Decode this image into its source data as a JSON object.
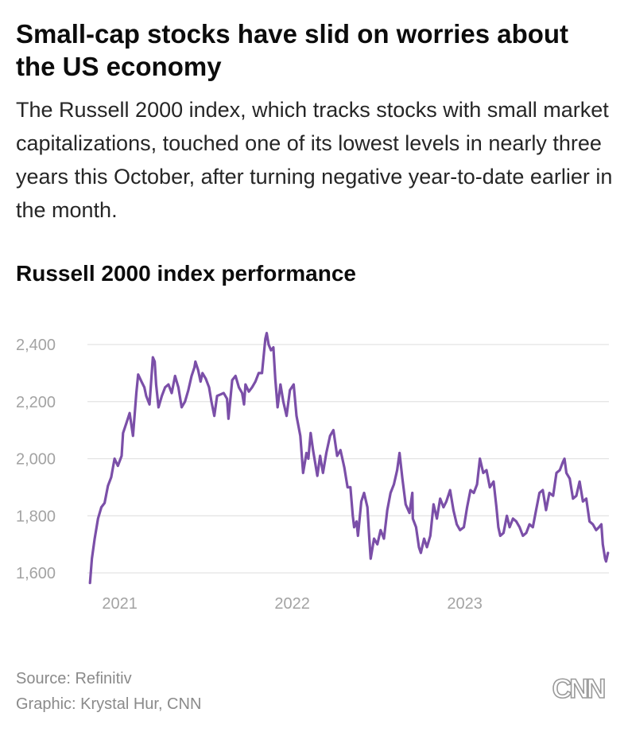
{
  "header": {
    "title": "Small-cap stocks have slid on worries about the US economy",
    "subtitle": "The Russell 2000 index, which tracks stocks with small market capitalizations, touched one of its lowest levels in nearly three years this October, after turning negative year-to-date earlier in the month."
  },
  "chart_data": {
    "type": "line",
    "title": "Russell 2000 index performance",
    "xlabel": "",
    "ylabel": "",
    "ylim": [
      1600,
      2450
    ],
    "xlim": [
      "2020-10-28",
      "2023-11-02"
    ],
    "yticks": [
      1600,
      1800,
      2000,
      2200,
      2400
    ],
    "ytick_labels": [
      "1,600",
      "1,800",
      "2,000",
      "2,200",
      "2,400"
    ],
    "xticks": [
      "2021",
      "2022",
      "2023"
    ],
    "xtick_dates": [
      "2021-01-01",
      "2022-01-01",
      "2023-01-01"
    ],
    "grid": true,
    "line_color": "#7b4fa8",
    "series": [
      {
        "name": "",
        "points": [
          [
            "2020-10-30",
            1565
          ],
          [
            "2020-11-03",
            1650
          ],
          [
            "2020-11-09",
            1720
          ],
          [
            "2020-11-16",
            1790
          ],
          [
            "2020-11-23",
            1830
          ],
          [
            "2020-11-30",
            1845
          ],
          [
            "2020-12-07",
            1905
          ],
          [
            "2020-12-14",
            1935
          ],
          [
            "2020-12-21",
            2000
          ],
          [
            "2020-12-28",
            1975
          ],
          [
            "2021-01-05",
            2010
          ],
          [
            "2021-01-08",
            2090
          ],
          [
            "2021-01-15",
            2125
          ],
          [
            "2021-01-22",
            2160
          ],
          [
            "2021-01-29",
            2080
          ],
          [
            "2021-02-05",
            2230
          ],
          [
            "2021-02-09",
            2295
          ],
          [
            "2021-02-16",
            2270
          ],
          [
            "2021-02-22",
            2250
          ],
          [
            "2021-02-26",
            2220
          ],
          [
            "2021-03-05",
            2190
          ],
          [
            "2021-03-12",
            2355
          ],
          [
            "2021-03-16",
            2340
          ],
          [
            "2021-03-19",
            2260
          ],
          [
            "2021-03-24",
            2180
          ],
          [
            "2021-03-31",
            2220
          ],
          [
            "2021-04-07",
            2250
          ],
          [
            "2021-04-14",
            2260
          ],
          [
            "2021-04-21",
            2230
          ],
          [
            "2021-04-28",
            2290
          ],
          [
            "2021-05-05",
            2250
          ],
          [
            "2021-05-12",
            2180
          ],
          [
            "2021-05-19",
            2200
          ],
          [
            "2021-05-26",
            2240
          ],
          [
            "2021-06-02",
            2290
          ],
          [
            "2021-06-08",
            2320
          ],
          [
            "2021-06-10",
            2340
          ],
          [
            "2021-06-16",
            2310
          ],
          [
            "2021-06-21",
            2270
          ],
          [
            "2021-06-25",
            2300
          ],
          [
            "2021-07-02",
            2280
          ],
          [
            "2021-07-09",
            2250
          ],
          [
            "2021-07-14",
            2200
          ],
          [
            "2021-07-20",
            2150
          ],
          [
            "2021-07-26",
            2220
          ],
          [
            "2021-08-02",
            2225
          ],
          [
            "2021-08-09",
            2230
          ],
          [
            "2021-08-16",
            2210
          ],
          [
            "2021-08-19",
            2140
          ],
          [
            "2021-08-27",
            2275
          ],
          [
            "2021-09-03",
            2290
          ],
          [
            "2021-09-10",
            2250
          ],
          [
            "2021-09-17",
            2230
          ],
          [
            "2021-09-21",
            2190
          ],
          [
            "2021-09-24",
            2260
          ],
          [
            "2021-10-01",
            2235
          ],
          [
            "2021-10-08",
            2250
          ],
          [
            "2021-10-15",
            2270
          ],
          [
            "2021-10-22",
            2300
          ],
          [
            "2021-10-29",
            2300
          ],
          [
            "2021-11-05",
            2420
          ],
          [
            "2021-11-08",
            2440
          ],
          [
            "2021-11-12",
            2400
          ],
          [
            "2021-11-17",
            2380
          ],
          [
            "2021-11-22",
            2390
          ],
          [
            "2021-11-26",
            2280
          ],
          [
            "2021-12-01",
            2180
          ],
          [
            "2021-12-07",
            2260
          ],
          [
            "2021-12-13",
            2200
          ],
          [
            "2021-12-20",
            2150
          ],
          [
            "2021-12-27",
            2240
          ],
          [
            "2022-01-04",
            2260
          ],
          [
            "2022-01-10",
            2150
          ],
          [
            "2022-01-18",
            2080
          ],
          [
            "2022-01-24",
            1950
          ],
          [
            "2022-01-31",
            2020
          ],
          [
            "2022-02-04",
            2000
          ],
          [
            "2022-02-09",
            2090
          ],
          [
            "2022-02-14",
            2030
          ],
          [
            "2022-02-23",
            1940
          ],
          [
            "2022-03-01",
            2010
          ],
          [
            "2022-03-07",
            1950
          ],
          [
            "2022-03-14",
            2020
          ],
          [
            "2022-03-22",
            2080
          ],
          [
            "2022-03-29",
            2100
          ],
          [
            "2022-04-06",
            2010
          ],
          [
            "2022-04-13",
            2030
          ],
          [
            "2022-04-21",
            1970
          ],
          [
            "2022-04-28",
            1900
          ],
          [
            "2022-05-04",
            1900
          ],
          [
            "2022-05-09",
            1800
          ],
          [
            "2022-05-12",
            1760
          ],
          [
            "2022-05-17",
            1780
          ],
          [
            "2022-05-20",
            1730
          ],
          [
            "2022-05-27",
            1850
          ],
          [
            "2022-06-02",
            1880
          ],
          [
            "2022-06-09",
            1830
          ],
          [
            "2022-06-13",
            1720
          ],
          [
            "2022-06-16",
            1650
          ],
          [
            "2022-06-23",
            1720
          ],
          [
            "2022-06-30",
            1700
          ],
          [
            "2022-07-07",
            1750
          ],
          [
            "2022-07-14",
            1720
          ],
          [
            "2022-07-21",
            1820
          ],
          [
            "2022-07-28",
            1880
          ],
          [
            "2022-08-04",
            1910
          ],
          [
            "2022-08-11",
            1960
          ],
          [
            "2022-08-16",
            2020
          ],
          [
            "2022-08-22",
            1930
          ],
          [
            "2022-08-29",
            1840
          ],
          [
            "2022-09-06",
            1810
          ],
          [
            "2022-09-12",
            1880
          ],
          [
            "2022-09-13",
            1790
          ],
          [
            "2022-09-20",
            1760
          ],
          [
            "2022-09-26",
            1690
          ],
          [
            "2022-09-30",
            1670
          ],
          [
            "2022-10-07",
            1720
          ],
          [
            "2022-10-13",
            1690
          ],
          [
            "2022-10-20",
            1730
          ],
          [
            "2022-10-27",
            1840
          ],
          [
            "2022-11-03",
            1790
          ],
          [
            "2022-11-10",
            1860
          ],
          [
            "2022-11-17",
            1830
          ],
          [
            "2022-11-23",
            1850
          ],
          [
            "2022-12-01",
            1890
          ],
          [
            "2022-12-08",
            1820
          ],
          [
            "2022-12-15",
            1770
          ],
          [
            "2022-12-22",
            1750
          ],
          [
            "2022-12-30",
            1760
          ],
          [
            "2023-01-06",
            1830
          ],
          [
            "2023-01-13",
            1890
          ],
          [
            "2023-01-20",
            1880
          ],
          [
            "2023-01-27",
            1910
          ],
          [
            "2023-02-02",
            2000
          ],
          [
            "2023-02-09",
            1950
          ],
          [
            "2023-02-16",
            1960
          ],
          [
            "2023-02-23",
            1900
          ],
          [
            "2023-03-03",
            1920
          ],
          [
            "2023-03-09",
            1830
          ],
          [
            "2023-03-13",
            1760
          ],
          [
            "2023-03-17",
            1730
          ],
          [
            "2023-03-24",
            1740
          ],
          [
            "2023-03-31",
            1800
          ],
          [
            "2023-04-06",
            1760
          ],
          [
            "2023-04-13",
            1790
          ],
          [
            "2023-04-20",
            1780
          ],
          [
            "2023-04-27",
            1760
          ],
          [
            "2023-05-04",
            1730
          ],
          [
            "2023-05-11",
            1740
          ],
          [
            "2023-05-18",
            1770
          ],
          [
            "2023-05-25",
            1760
          ],
          [
            "2023-06-01",
            1820
          ],
          [
            "2023-06-08",
            1880
          ],
          [
            "2023-06-15",
            1890
          ],
          [
            "2023-06-22",
            1820
          ],
          [
            "2023-06-29",
            1880
          ],
          [
            "2023-07-07",
            1870
          ],
          [
            "2023-07-14",
            1950
          ],
          [
            "2023-07-21",
            1960
          ],
          [
            "2023-07-28",
            1990
          ],
          [
            "2023-07-31",
            2000
          ],
          [
            "2023-08-04",
            1950
          ],
          [
            "2023-08-11",
            1930
          ],
          [
            "2023-08-18",
            1860
          ],
          [
            "2023-08-25",
            1870
          ],
          [
            "2023-09-01",
            1920
          ],
          [
            "2023-09-08",
            1850
          ],
          [
            "2023-09-15",
            1860
          ],
          [
            "2023-09-22",
            1780
          ],
          [
            "2023-09-29",
            1770
          ],
          [
            "2023-10-06",
            1750
          ],
          [
            "2023-10-12",
            1760
          ],
          [
            "2023-10-17",
            1770
          ],
          [
            "2023-10-20",
            1700
          ],
          [
            "2023-10-25",
            1650
          ],
          [
            "2023-10-27",
            1640
          ],
          [
            "2023-10-31",
            1670
          ]
        ]
      }
    ]
  },
  "footer": {
    "source": "Source: Refinitiv",
    "credit": "Graphic: Krystal Hur, CNN",
    "logo_text": "CNN"
  }
}
